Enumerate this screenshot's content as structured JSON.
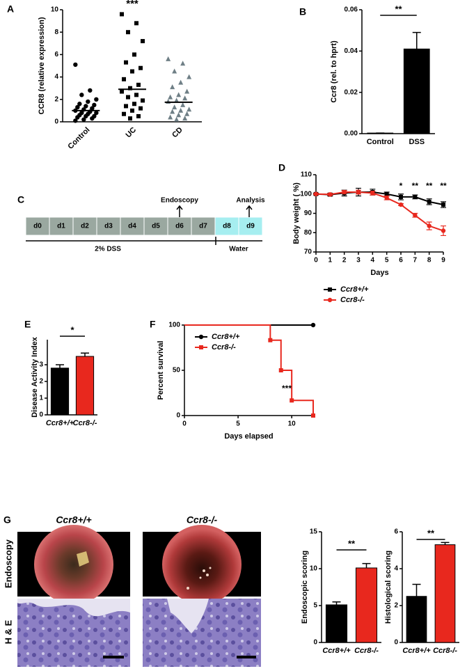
{
  "chart_data": [
    {
      "panel": "A",
      "type": "dot",
      "ylabel": "CCR8 (relative expression)",
      "categories": [
        "Control",
        "UC",
        "CD"
      ],
      "colors": [
        "#000000",
        "#000000",
        "#6f7f86"
      ],
      "markers": [
        "circle",
        "square",
        "triangle"
      ],
      "points": [
        [
          5.1,
          2.8,
          2.4,
          2.0,
          1.8,
          1.6,
          1.5,
          1.4,
          1.3,
          1.2,
          1.1,
          1.0,
          0.9,
          0.8,
          0.8,
          0.7,
          0.6,
          0.5,
          0.5,
          0.4,
          0.3,
          0.2,
          0.1
        ],
        [
          9.6,
          8.8,
          8.0,
          7.2,
          6.0,
          5.3,
          4.8,
          4.5,
          3.8,
          3.3,
          3.0,
          2.7,
          2.4,
          2.2,
          1.9,
          1.6,
          1.4,
          1.2,
          1.0,
          0.7,
          0.5,
          0.3
        ],
        [
          5.6,
          5.2,
          4.5,
          4.0,
          3.5,
          3.1,
          2.7,
          2.4,
          2.2,
          2.1,
          1.9,
          1.8,
          1.5,
          1.3,
          1.1,
          1.0,
          0.9,
          0.7,
          0.6,
          0.4,
          0.3,
          0.2
        ]
      ],
      "means": [
        1.0,
        2.9,
        1.75
      ],
      "ylim": [
        0,
        10
      ],
      "yticks": [
        0,
        2,
        4,
        6,
        8,
        10
      ],
      "annotations": [
        {
          "text": "***",
          "color": "#e03030"
        }
      ]
    },
    {
      "panel": "B",
      "type": "bar",
      "ylabel": "Ccr8 (rel. to hprt)",
      "categories": [
        "Control",
        "DSS"
      ],
      "values": [
        0.0003,
        0.041
      ],
      "errors": [
        0,
        0.008
      ],
      "colors": [
        "#000000",
        "#000000"
      ],
      "ylim": [
        0,
        0.06
      ],
      "yticks": [
        {
          "value": 0,
          "label": "0.00"
        },
        {
          "value": 0.02,
          "label": "0.02"
        },
        {
          "value": 0.04,
          "label": "0.04"
        },
        {
          "value": 0.06,
          "label": "0.06"
        }
      ],
      "annotations": [
        {
          "text": "**"
        }
      ]
    },
    {
      "panel": "D",
      "type": "line",
      "ylabel": "Body weight ( %)",
      "xlabel": "Days",
      "x": [
        0,
        1,
        2,
        3,
        4,
        5,
        6,
        7,
        8,
        9
      ],
      "xlim": [
        0,
        9
      ],
      "xticks": [
        0,
        1,
        2,
        3,
        4,
        5,
        6,
        7,
        8,
        9
      ],
      "ylim": [
        70,
        110
      ],
      "yticks": [
        70,
        80,
        90,
        100,
        110
      ],
      "series": [
        {
          "name": "Ccr8+/+",
          "color": "#000000",
          "marker": "square",
          "values": [
            100,
            99.7,
            100.5,
            101,
            101,
            100,
            98.5,
            98.5,
            96,
            94.5
          ],
          "errors": [
            0.5,
            0.7,
            1.5,
            2,
            1.5,
            1,
            1.5,
            1,
            1.5,
            1.5
          ]
        },
        {
          "name": "Ccr8-/-",
          "color": "#e8281e",
          "marker": "circle",
          "values": [
            100,
            99.8,
            101,
            101,
            100.5,
            98,
            94.5,
            89,
            83.5,
            81
          ],
          "errors": [
            0.3,
            0.5,
            0.8,
            1,
            1,
            1,
            0.5,
            1,
            2,
            2.5
          ]
        }
      ],
      "annotations": [
        {
          "text": "*",
          "x": 6
        },
        {
          "text": "**",
          "x": 7
        },
        {
          "text": "**",
          "x": 8
        },
        {
          "text": "**",
          "x": 9
        }
      ]
    },
    {
      "panel": "E",
      "type": "bar",
      "ylabel": "Disease Activity Index",
      "categories": [
        "Ccr8+/+",
        "Ccr8-/-"
      ],
      "values": [
        2.8,
        3.5
      ],
      "errors": [
        0.2,
        0.2
      ],
      "colors": [
        "#000000",
        "#e8281e"
      ],
      "ylim": [
        0,
        4.5
      ],
      "yticks": [
        0,
        1,
        2,
        3
      ],
      "annotations": [
        {
          "text": "*"
        }
      ]
    },
    {
      "panel": "F",
      "type": "step",
      "ylabel": "Percent survival",
      "xlabel": "Days elapsed",
      "xlim": [
        0,
        12
      ],
      "xticks": [
        0,
        5,
        10
      ],
      "ylim": [
        0,
        100
      ],
      "yticks": [
        0,
        50,
        100
      ],
      "series": [
        {
          "name": "Ccr8+/+",
          "color": "#000000",
          "marker": "circle",
          "x": [
            0,
            12
          ],
          "values": [
            100,
            100
          ]
        },
        {
          "name": "Ccr8-/-",
          "color": "#e8281e",
          "marker": "square",
          "x": [
            0,
            8,
            9,
            10,
            12
          ],
          "values": [
            100,
            83.3,
            50,
            16.7,
            0
          ]
        }
      ],
      "annotations": [
        {
          "text": "***"
        }
      ]
    },
    {
      "type": "bar",
      "ylabel": "Endoscopic scoring",
      "categories": [
        "Ccr8+/+",
        "Ccr8-/-"
      ],
      "values": [
        5.1,
        10.1
      ],
      "errors": [
        0.4,
        0.6
      ],
      "colors": [
        "#000000",
        "#e8281e"
      ],
      "ylim": [
        0,
        15
      ],
      "yticks": [
        0,
        5,
        10,
        15
      ],
      "annotations": [
        {
          "text": "**"
        }
      ]
    },
    {
      "type": "bar",
      "ylabel": "Histological scoring",
      "categories": [
        "Ccr8+/+",
        "Ccr8-/-"
      ],
      "values": [
        2.5,
        5.3
      ],
      "errors": [
        0.65,
        0.12
      ],
      "colors": [
        "#000000",
        "#e8281e"
      ],
      "ylim": [
        0,
        6
      ],
      "yticks": [
        0,
        2,
        4,
        6
      ],
      "annotations": [
        {
          "text": "**"
        }
      ]
    }
  ],
  "timeline": {
    "panel": "C",
    "days": [
      "d0",
      "d1",
      "d2",
      "d3",
      "d4",
      "d5",
      "d6",
      "d7",
      "d8",
      "d9"
    ],
    "phases": [
      "2% DSS",
      "Water"
    ],
    "events": [
      "Endoscopy",
      "Analysis"
    ]
  },
  "images": {
    "panel": "G",
    "columns": [
      "Ccr8+/+",
      "Ccr8-/-"
    ],
    "rows": [
      "Endoscopy",
      "H & E"
    ]
  }
}
